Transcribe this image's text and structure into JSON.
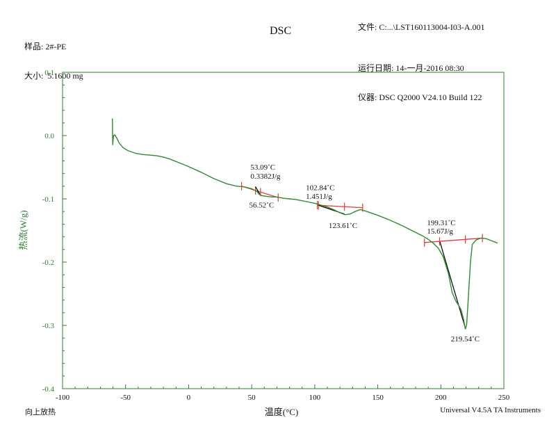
{
  "header": {
    "sample_label": "样品: 2#-PE",
    "size_label": "大小:  5.1600 mg",
    "title": "DSC",
    "file_label": "文件: C:...\\LST160113004-I03-A.001",
    "run_date_label": "运行日期: 14-一月-2016 08:30",
    "instrument_label": "仪器: DSC Q2000 V24.10 Build 122"
  },
  "footer": {
    "left": "向上放热",
    "right": "Universal V4.5A TA Instruments"
  },
  "colors": {
    "axis": "#2e7d32",
    "curve": "#2e8b2e",
    "baseline": "#e53935",
    "annotation": "#111111"
  },
  "chart_data": {
    "type": "line",
    "xlabel": "温度(°C)",
    "ylabel": "热流(W/g)",
    "xlim": [
      -100,
      250
    ],
    "ylim": [
      -0.4,
      0.1
    ],
    "x_ticks": [
      -100,
      -50,
      0,
      50,
      100,
      150,
      200,
      250
    ],
    "y_ticks": [
      0.1,
      0.0,
      -0.1,
      -0.2,
      -0.3,
      -0.4
    ],
    "x_tick_labels": [
      "-100",
      "-50",
      "0",
      "50",
      "100",
      "150",
      "200",
      "250"
    ],
    "y_tick_labels": [
      "0.1",
      "0.0",
      "-0.1",
      "-0.2",
      "-0.3",
      "-0.4"
    ],
    "grid": false,
    "series": [
      {
        "x": [
          -60.5,
          -60.2,
          -59.8,
          -59.5,
          -58.5,
          -57,
          -55,
          -52,
          -48,
          -42,
          -36,
          -30,
          -25,
          -20,
          -15,
          -10,
          -5,
          0,
          10,
          20,
          30,
          38,
          44,
          50,
          54,
          56,
          58,
          62,
          66,
          70,
          75,
          80,
          85,
          90,
          95,
          100,
          105,
          110,
          115,
          120,
          124,
          128,
          132,
          136,
          140,
          150,
          160,
          170,
          180,
          186,
          190,
          194,
          198,
          202,
          206,
          209,
          212,
          214,
          216,
          218,
          219,
          219.6,
          220.5,
          222,
          223.5,
          225,
          228,
          232,
          236,
          240,
          245
        ],
        "y": [
          0.027,
          -0.015,
          -0.005,
          0.0,
          0.001,
          -0.004,
          -0.012,
          -0.019,
          -0.024,
          -0.028,
          -0.03,
          -0.031,
          -0.032,
          -0.034,
          -0.037,
          -0.041,
          -0.045,
          -0.049,
          -0.058,
          -0.068,
          -0.076,
          -0.08,
          -0.081,
          -0.084,
          -0.088,
          -0.093,
          -0.095,
          -0.096,
          -0.097,
          -0.097,
          -0.099,
          -0.1,
          -0.101,
          -0.103,
          -0.105,
          -0.107,
          -0.11,
          -0.113,
          -0.117,
          -0.122,
          -0.125,
          -0.124,
          -0.12,
          -0.117,
          -0.119,
          -0.126,
          -0.134,
          -0.143,
          -0.153,
          -0.159,
          -0.164,
          -0.17,
          -0.178,
          -0.192,
          -0.218,
          -0.248,
          -0.262,
          -0.268,
          -0.275,
          -0.29,
          -0.302,
          -0.306,
          -0.298,
          -0.25,
          -0.2,
          -0.172,
          -0.165,
          -0.162,
          -0.163,
          -0.166,
          -0.17
        ]
      }
    ],
    "baselines": [
      {
        "x": [
          42,
          71
        ],
        "y": [
          -0.08,
          -0.098
        ],
        "ticks": [
          42,
          53,
          57,
          71
        ]
      },
      {
        "x": [
          102,
          138
        ],
        "y": [
          -0.11,
          -0.114
        ],
        "ticks": [
          102,
          103,
          123.6,
          138
        ]
      },
      {
        "x": [
          187,
          233
        ],
        "y": [
          -0.169,
          -0.162
        ],
        "ticks": [
          187,
          199,
          219.5,
          233
        ]
      }
    ],
    "peak_lines": [
      {
        "x": [
          53.09,
          56.52
        ],
        "y": [
          -0.081,
          -0.093
        ]
      },
      {
        "x": [
          102.84,
          123.61
        ],
        "y": [
          -0.11,
          -0.124
        ]
      },
      {
        "x": [
          199.31,
          219.54
        ],
        "y": [
          -0.168,
          -0.305
        ]
      }
    ],
    "annotations": [
      {
        "text": "53.09˚C",
        "x": 49,
        "y": -0.054
      },
      {
        "text": "0.3382J/g",
        "x": 49,
        "y": -0.068
      },
      {
        "text": "56.52˚C",
        "x": 48,
        "y": -0.114
      },
      {
        "text": "102.84˚C",
        "x": 93,
        "y": -0.086
      },
      {
        "text": "1.451J/g",
        "x": 93,
        "y": -0.1
      },
      {
        "text": "123.61˚C",
        "x": 111,
        "y": -0.146
      },
      {
        "text": "199.31˚C",
        "x": 189,
        "y": -0.142
      },
      {
        "text": "15.67J/g",
        "x": 189,
        "y": -0.155
      },
      {
        "text": "219.54˚C",
        "x": 208,
        "y": -0.325
      }
    ]
  }
}
